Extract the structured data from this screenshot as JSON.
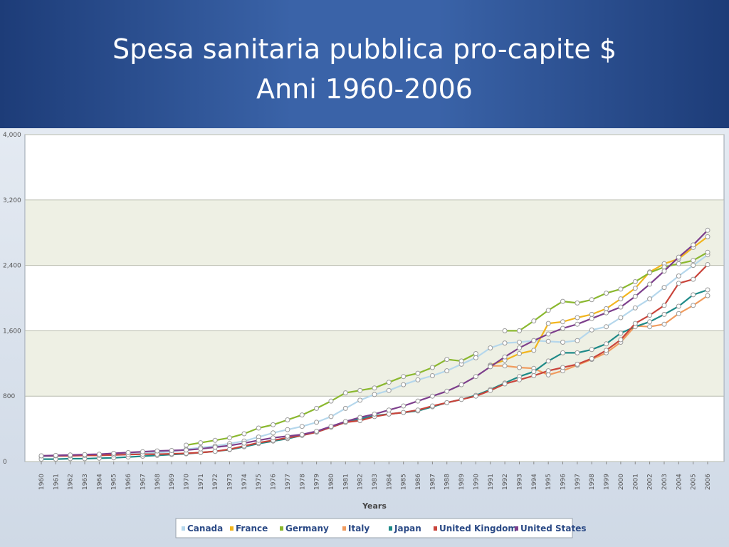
{
  "header": {
    "title_line1": "Spesa sanitaria pubblica pro-capite $",
    "title_line2": "Anni 1960-2006"
  },
  "chart_data": {
    "type": "line",
    "x": [
      1960,
      1961,
      1962,
      1963,
      1964,
      1965,
      1966,
      1967,
      1968,
      1969,
      1970,
      1971,
      1972,
      1973,
      1974,
      1975,
      1976,
      1977,
      1978,
      1979,
      1980,
      1981,
      1982,
      1983,
      1984,
      1985,
      1986,
      1987,
      1988,
      1989,
      1990,
      1991,
      1992,
      1993,
      1994,
      1995,
      1996,
      1997,
      1998,
      1999,
      2000,
      2001,
      2002,
      2003,
      2004,
      2005,
      2006
    ],
    "series": [
      {
        "name": "Canada",
        "color": "#b5d7ec",
        "values": [
          60,
          65,
          70,
          75,
          80,
          90,
          95,
          100,
          110,
          120,
          150,
          170,
          190,
          220,
          250,
          300,
          350,
          390,
          430,
          480,
          550,
          650,
          750,
          820,
          870,
          940,
          1000,
          1050,
          1110,
          1190,
          1270,
          1390,
          1450,
          1460,
          1480,
          1470,
          1460,
          1480,
          1610,
          1650,
          1760,
          1880,
          1990,
          2130,
          2270,
          2400,
          2530
        ]
      },
      {
        "name": "France",
        "color": "#f2b51d",
        "values": [
          null,
          null,
          null,
          null,
          null,
          null,
          null,
          null,
          null,
          null,
          null,
          null,
          null,
          null,
          null,
          null,
          null,
          null,
          null,
          null,
          null,
          null,
          null,
          null,
          null,
          null,
          null,
          null,
          null,
          null,
          null,
          1180,
          1240,
          1320,
          1360,
          1690,
          1710,
          1760,
          1800,
          1870,
          1990,
          2120,
          2320,
          2420,
          2480,
          2620,
          2750
        ]
      },
      {
        "name": "Germany",
        "color": "#8ab82e",
        "values": [
          null,
          null,
          null,
          null,
          null,
          null,
          null,
          null,
          null,
          null,
          200,
          230,
          260,
          290,
          340,
          410,
          450,
          510,
          570,
          650,
          740,
          840,
          870,
          900,
          970,
          1040,
          1080,
          1150,
          1250,
          1230,
          1320,
          null,
          1600,
          1600,
          1720,
          1850,
          1960,
          1940,
          1980,
          2060,
          2110,
          2200,
          2310,
          2380,
          2420,
          2460,
          2560
        ]
      },
      {
        "name": "Italy",
        "color": "#f09b5e",
        "values": [
          null,
          null,
          null,
          null,
          null,
          null,
          null,
          null,
          null,
          null,
          null,
          null,
          null,
          null,
          null,
          null,
          null,
          null,
          null,
          null,
          null,
          null,
          null,
          null,
          null,
          null,
          null,
          null,
          null,
          null,
          null,
          1170,
          1170,
          1150,
          1140,
          1060,
          1110,
          1180,
          1250,
          1330,
          1460,
          1660,
          1650,
          1680,
          1810,
          1910,
          2030
        ]
      },
      {
        "name": "Japan",
        "color": "#1e8a88",
        "values": [
          30,
          30,
          35,
          35,
          40,
          45,
          55,
          65,
          75,
          85,
          95,
          110,
          125,
          145,
          180,
          220,
          250,
          280,
          320,
          360,
          420,
          480,
          520,
          560,
          580,
          600,
          620,
          670,
          720,
          760,
          810,
          880,
          960,
          1040,
          1100,
          1230,
          1330,
          1330,
          1370,
          1440,
          1570,
          1650,
          1710,
          1800,
          1900,
          2040,
          2100
        ]
      },
      {
        "name": "United Kingdom",
        "color": "#c9443b",
        "values": [
          70,
          70,
          70,
          75,
          75,
          80,
          85,
          90,
          90,
          95,
          100,
          110,
          125,
          150,
          190,
          230,
          260,
          290,
          320,
          360,
          420,
          480,
          500,
          550,
          580,
          600,
          630,
          680,
          720,
          760,
          800,
          870,
          950,
          1000,
          1050,
          1110,
          1150,
          1190,
          1260,
          1360,
          1490,
          1690,
          1790,
          1910,
          2180,
          2230,
          2410
        ]
      },
      {
        "name": "United States",
        "color": "#7d3f8c",
        "values": [
          70,
          75,
          80,
          85,
          90,
          100,
          110,
          120,
          130,
          135,
          140,
          155,
          175,
          195,
          225,
          260,
          290,
          310,
          330,
          370,
          430,
          490,
          540,
          580,
          630,
          680,
          740,
          800,
          860,
          940,
          1040,
          1160,
          1280,
          1390,
          1480,
          1560,
          1630,
          1680,
          1750,
          1820,
          1890,
          2020,
          2170,
          2330,
          2500,
          2650,
          2830
        ]
      }
    ],
    "xlabel": "Years",
    "ylabel": "",
    "yticks": [
      "0",
      "800",
      "1,600",
      "2,400",
      "3,200",
      "4,000"
    ],
    "ylim": [
      0,
      4000
    ],
    "grid": true,
    "legend_position": "bottom"
  }
}
